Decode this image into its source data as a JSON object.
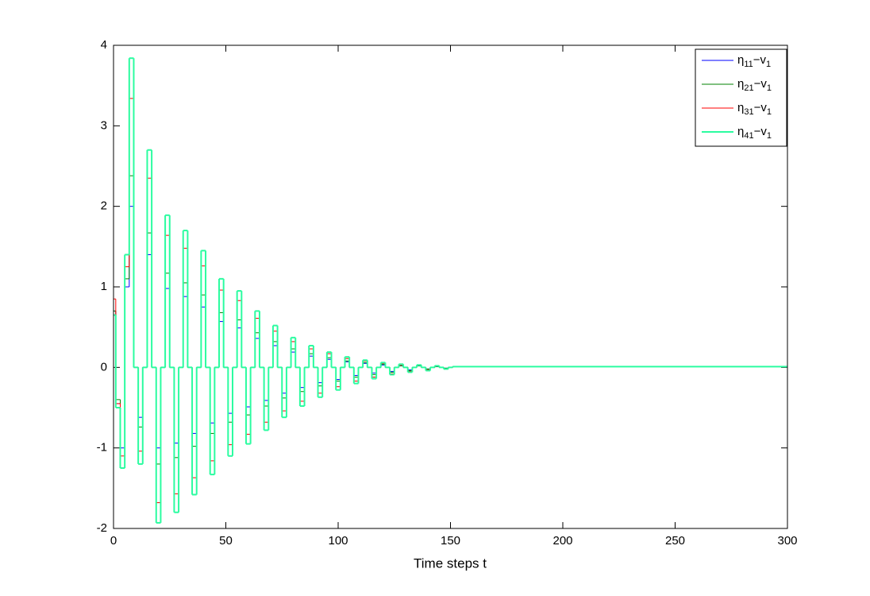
{
  "chart_data": {
    "type": "stairs",
    "x_label": "Time steps t",
    "xlim": [
      0,
      300
    ],
    "xticks": [
      0,
      50,
      100,
      150,
      200,
      250,
      300
    ],
    "ylim": [
      -2,
      4
    ],
    "yticks": [
      -2,
      -1,
      0,
      1,
      2,
      3,
      4
    ],
    "legend": "upper right",
    "x": [
      0,
      1,
      3,
      5,
      7,
      9,
      11,
      13,
      15,
      17,
      19,
      21,
      23,
      25,
      27,
      29,
      31,
      33,
      35,
      37,
      39,
      41,
      43,
      45,
      47,
      49,
      51,
      53,
      55,
      57,
      59,
      61,
      63,
      65,
      67,
      69,
      71,
      73,
      75,
      77,
      79,
      81,
      83,
      85,
      87,
      89,
      91,
      93,
      95,
      97,
      99,
      101,
      103,
      105,
      107,
      109,
      111,
      113,
      115,
      117,
      119,
      121,
      123,
      125,
      127,
      129,
      131,
      133,
      135,
      137,
      139,
      141,
      143,
      145,
      147,
      149,
      151,
      300
    ],
    "series": [
      {
        "name": "η11−v1",
        "color": "#0000ff",
        "values": [
          0.7,
          -0.45,
          -1.0,
          1.0,
          2,
          0,
          -0.62,
          0,
          1.4,
          0,
          -1,
          0,
          0.98,
          0,
          -0.94,
          0,
          0.88,
          0,
          -0.82,
          0,
          0.75,
          0,
          -0.69,
          0,
          0.57,
          0,
          -0.57,
          0,
          0.49,
          0,
          -0.49,
          0,
          0.36,
          0,
          -0.41,
          0,
          0.27,
          0,
          -0.32,
          0,
          0.19,
          0,
          -0.25,
          0,
          0.14,
          0,
          -0.19,
          0,
          0.1,
          0,
          -0.15,
          0,
          0.07,
          0,
          -0.1,
          0,
          0.05,
          0,
          -0.07,
          0,
          0.03,
          0,
          -0.05,
          0,
          0.02,
          0,
          -0.03,
          0,
          0.02,
          0,
          -0.02,
          0,
          0.01,
          0,
          -0.01,
          0,
          0.01,
          0
        ]
      },
      {
        "name": "η21−v1",
        "color": "#008000",
        "values": [
          0.7,
          -0.4,
          -1.25,
          1.1,
          2.38,
          0,
          -0.74,
          0,
          1.67,
          0,
          -1.2,
          0,
          1.17,
          0,
          -1.12,
          0,
          1.05,
          0,
          -0.98,
          0,
          0.9,
          0,
          -0.82,
          0,
          0.68,
          0,
          -0.68,
          0,
          0.59,
          0,
          -0.59,
          0,
          0.43,
          0,
          -0.48,
          0,
          0.32,
          0,
          -0.38,
          0,
          0.23,
          0,
          -0.3,
          0,
          0.17,
          0,
          -0.23,
          0,
          0.12,
          0,
          -0.17,
          0,
          0.08,
          0,
          -0.12,
          0,
          0.06,
          0,
          -0.09,
          0,
          0.04,
          0,
          -0.06,
          0,
          0.02,
          0,
          -0.04,
          0,
          0.02,
          0,
          -0.02,
          0,
          0.01,
          0,
          -0.01,
          0,
          0.01,
          0
        ]
      },
      {
        "name": "η31−v1",
        "color": "#ff0000",
        "values": [
          0.85,
          -0.45,
          -1.1,
          1.25,
          3.34,
          0,
          -1.04,
          0,
          2.35,
          0,
          -1.68,
          0,
          1.64,
          0,
          -1.57,
          0,
          1.48,
          0,
          -1.37,
          0,
          1.26,
          0,
          -1.16,
          0,
          0.96,
          0,
          -0.96,
          0,
          0.83,
          0,
          -0.83,
          0,
          0.61,
          0,
          -0.68,
          0,
          0.45,
          0,
          -0.54,
          0,
          0.32,
          0,
          -0.42,
          0,
          0.23,
          0,
          -0.32,
          0,
          0.17,
          0,
          -0.24,
          0,
          0.11,
          0,
          -0.17,
          0,
          0.08,
          0,
          -0.12,
          0,
          0.05,
          0,
          -0.08,
          0,
          0.03,
          0,
          -0.05,
          0,
          0.03,
          0,
          -0.03,
          0,
          0.02,
          0,
          -0.02,
          0,
          0.01,
          0
        ]
      },
      {
        "name": "η41−v1",
        "color": "#2bfca0",
        "values": [
          0.65,
          -0.5,
          -1.25,
          1.4,
          3.84,
          0,
          -1.2,
          0,
          2.7,
          0,
          -1.93,
          0,
          1.89,
          0,
          -1.8,
          0,
          1.7,
          0,
          -1.58,
          0,
          1.45,
          0,
          -1.33,
          0,
          1.1,
          0,
          -1.1,
          0,
          0.95,
          0,
          -0.95,
          0,
          0.7,
          0,
          -0.78,
          0,
          0.52,
          0,
          -0.62,
          0,
          0.37,
          0,
          -0.48,
          0,
          0.27,
          0,
          -0.37,
          0,
          0.19,
          0,
          -0.28,
          0,
          0.13,
          0,
          -0.2,
          0,
          0.09,
          0,
          -0.14,
          0,
          0.06,
          0,
          -0.09,
          0,
          0.04,
          0,
          -0.06,
          0,
          0.03,
          0,
          -0.04,
          0,
          0.02,
          0,
          -0.02,
          0,
          0.01,
          0
        ]
      }
    ]
  }
}
